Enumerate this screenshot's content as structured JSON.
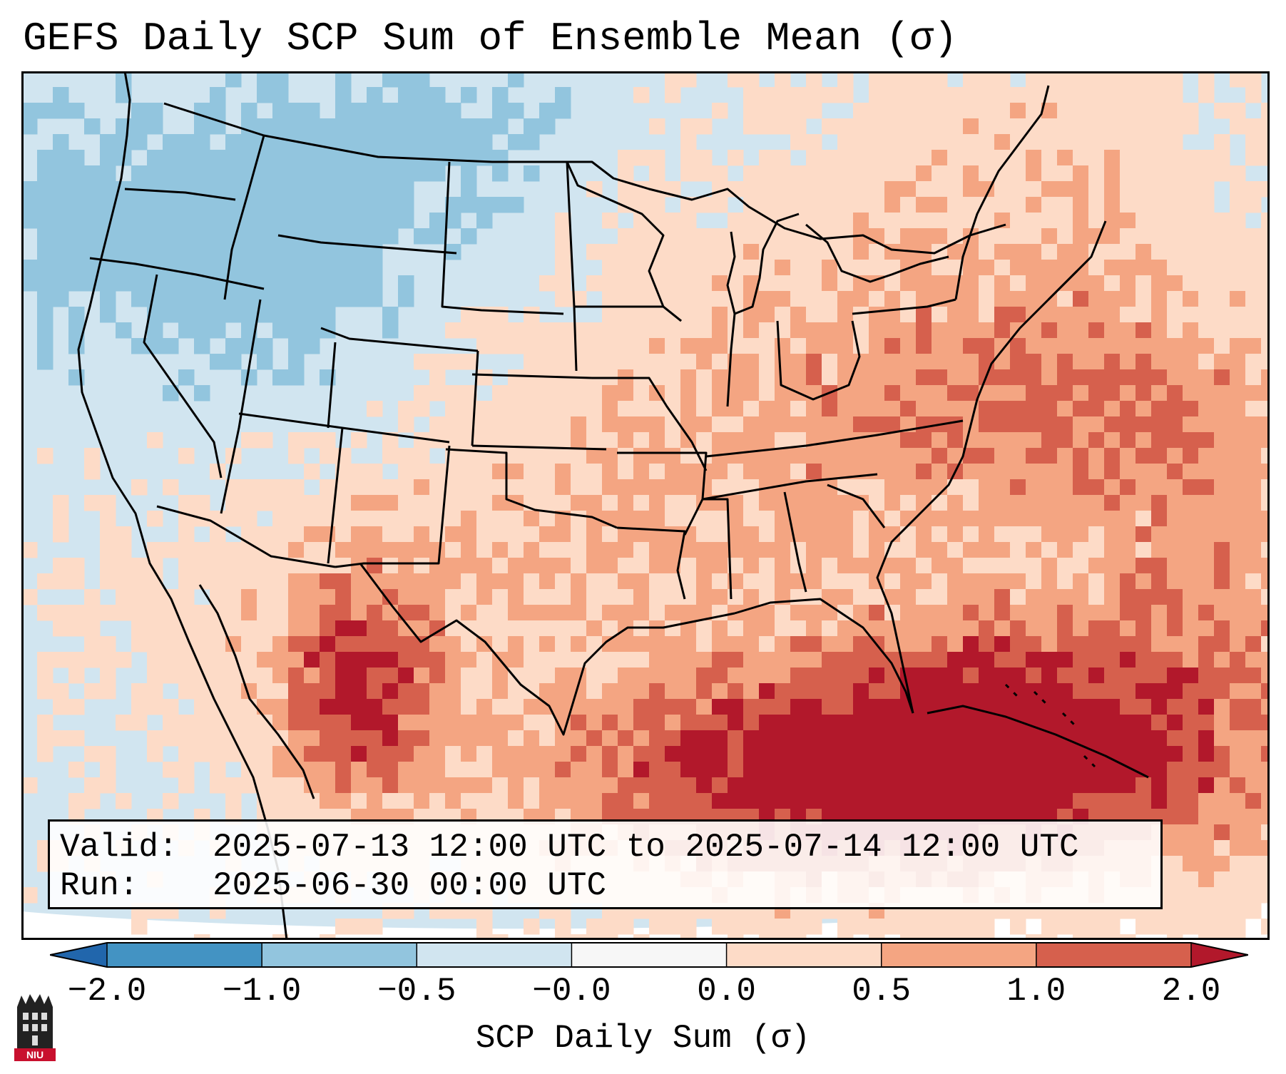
{
  "title": "GEFS Daily SCP Sum of Ensemble Mean (σ)",
  "info": {
    "valid_key": "Valid:",
    "valid_value": "2025-07-13 12:00 UTC to 2025-07-14 12:00 UTC",
    "run_key": "Run:",
    "run_value": "2025-06-30 00:00 UTC"
  },
  "colorbar": {
    "label": "SCP Daily Sum (σ)",
    "ticks": [
      "−2.0",
      "−1.0",
      "−0.5",
      "−0.0",
      "0.0",
      "0.5",
      "1.0",
      "2.0"
    ],
    "colors": [
      "#4393c3",
      "#92c5de",
      "#d1e5f0",
      "#f7f7f7",
      "#fddbc7",
      "#f4a582",
      "#d6604d"
    ],
    "extend_low_color": "#2166ac",
    "extend_high_color": "#b2182b"
  },
  "map": {
    "background_color": "#d1e5f0",
    "border_color": "#000000"
  },
  "logo": {
    "text": "NIU",
    "color": "#c8102e"
  }
}
